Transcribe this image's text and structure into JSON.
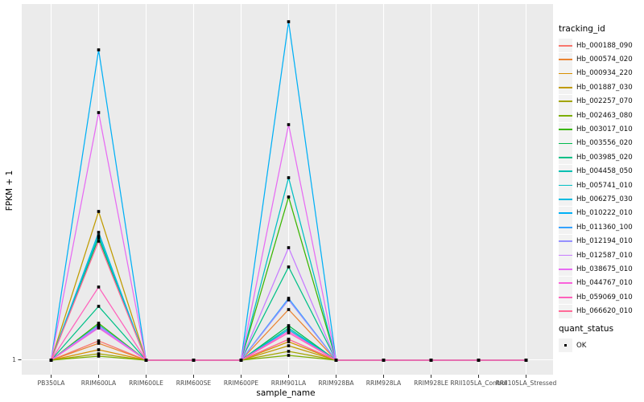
{
  "figure": {
    "background": "#FFFFFF",
    "panel_fill": "#EBEBEB",
    "grid_color": "#FFFFFF",
    "axis_text_color": "#4D4D4D",
    "tick_mark_color": "#333333",
    "point_color": "#000000",
    "legend_key_fill": "#F2F2F2"
  },
  "chart_data": {
    "type": "line",
    "title": "",
    "xlabel": "sample_name",
    "ylabel": "FPKM + 1",
    "y_ticks": [
      "1"
    ],
    "ylim": [
      1,
      445
    ],
    "grid": true,
    "legend_position": "right",
    "point_shape": "filled-square",
    "note": "y axis shows only the tick '1'; series values are relative FPKM+1 units estimated from pixel heights; all samples except RRIM600LA and RRIM901LA sit at 1",
    "legend_titles": {
      "color": "tracking_id",
      "shape": "quant_status"
    },
    "shape_legend": {
      "title": "quant_status",
      "items": [
        {
          "label": "OK"
        }
      ]
    },
    "categories": [
      "PB350LA",
      "RRIM600LA",
      "RRIM600LE",
      "RRIM600SE",
      "RRIM600PE",
      "RRIM901LA",
      "RRIM928BA",
      "RRIM928LA",
      "RRIM928LE",
      "RRII105LA_Control",
      "RRII105LA_Stressed"
    ],
    "series": [
      {
        "name": "Hb_000188_090",
        "color": "#F8766D",
        "values": [
          1,
          25,
          1,
          1,
          1,
          27,
          1,
          1,
          1,
          1,
          1
        ]
      },
      {
        "name": "Hb_000574_020",
        "color": "#EA8331",
        "values": [
          1,
          22,
          1,
          1,
          1,
          64,
          1,
          1,
          1,
          1,
          1
        ]
      },
      {
        "name": "Hb_000934_220",
        "color": "#D89000",
        "values": [
          1,
          14,
          1,
          1,
          1,
          24,
          1,
          1,
          1,
          1,
          1
        ]
      },
      {
        "name": "Hb_001887_030",
        "color": "#C09B00",
        "values": [
          1,
          186,
          1,
          1,
          1,
          19,
          1,
          1,
          1,
          1,
          1
        ]
      },
      {
        "name": "Hb_002257_070",
        "color": "#A3A500",
        "values": [
          1,
          9,
          1,
          1,
          1,
          12,
          1,
          1,
          1,
          1,
          1
        ]
      },
      {
        "name": "Hb_002463_080",
        "color": "#7CAE00",
        "values": [
          1,
          6,
          1,
          1,
          1,
          7,
          1,
          1,
          1,
          1,
          1
        ]
      },
      {
        "name": "Hb_003017_010",
        "color": "#39B600",
        "values": [
          1,
          47,
          1,
          1,
          1,
          204,
          1,
          1,
          1,
          1,
          1
        ]
      },
      {
        "name": "Hb_003556_020",
        "color": "#00BB4E",
        "values": [
          1,
          153,
          1,
          1,
          1,
          44,
          1,
          1,
          1,
          1,
          1
        ]
      },
      {
        "name": "Hb_003985_020",
        "color": "#00C087",
        "values": [
          1,
          68,
          1,
          1,
          1,
          117,
          1,
          1,
          1,
          1,
          1
        ]
      },
      {
        "name": "Hb_004458_050",
        "color": "#00C0B2",
        "values": [
          1,
          45,
          1,
          1,
          1,
          41,
          1,
          1,
          1,
          1,
          1
        ]
      },
      {
        "name": "Hb_005741_010",
        "color": "#00BFC4",
        "values": [
          1,
          156,
          1,
          1,
          1,
          228,
          1,
          1,
          1,
          1,
          1
        ]
      },
      {
        "name": "Hb_006275_030",
        "color": "#00BAE0",
        "values": [
          1,
          160,
          1,
          1,
          1,
          39,
          1,
          1,
          1,
          1,
          1
        ]
      },
      {
        "name": "Hb_010222_010",
        "color": "#00B0F6",
        "values": [
          1,
          387,
          1,
          1,
          1,
          422,
          1,
          1,
          1,
          1,
          1
        ]
      },
      {
        "name": "Hb_011360_100",
        "color": "#35A2FF",
        "values": [
          1,
          42,
          1,
          1,
          1,
          78,
          1,
          1,
          1,
          1,
          1
        ]
      },
      {
        "name": "Hb_012194_010",
        "color": "#9590FF",
        "values": [
          1,
          44,
          1,
          1,
          1,
          76,
          1,
          1,
          1,
          1,
          1
        ]
      },
      {
        "name": "Hb_012587_010",
        "color": "#C77CFF",
        "values": [
          1,
          43,
          1,
          1,
          1,
          141,
          1,
          1,
          1,
          1,
          1
        ]
      },
      {
        "name": "Hb_038675_010",
        "color": "#E76BF3",
        "values": [
          1,
          309,
          1,
          1,
          1,
          294,
          1,
          1,
          1,
          1,
          1
        ]
      },
      {
        "name": "Hb_044767_010",
        "color": "#FA62DB",
        "values": [
          1,
          41,
          1,
          1,
          1,
          37,
          1,
          1,
          1,
          1,
          1
        ]
      },
      {
        "name": "Hb_059069_010",
        "color": "#FF62BC",
        "values": [
          1,
          92,
          1,
          1,
          1,
          35,
          1,
          1,
          1,
          1,
          1
        ]
      },
      {
        "name": "Hb_066620_010",
        "color": "#FF6A98",
        "values": [
          1,
          149,
          1,
          1,
          1,
          27,
          1,
          1,
          1,
          1,
          1
        ]
      }
    ]
  }
}
